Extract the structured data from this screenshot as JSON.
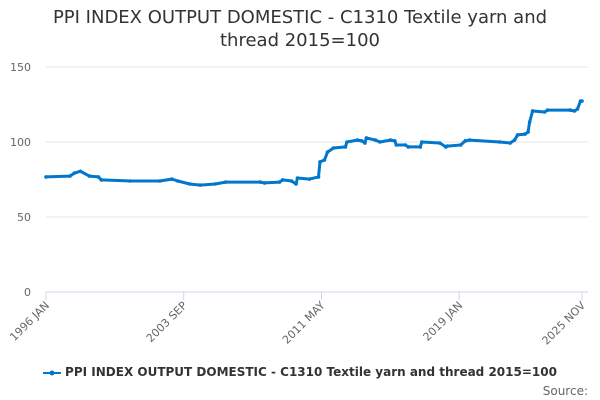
{
  "chart_data": {
    "type": "line",
    "title": "PPI INDEX OUTPUT DOMESTIC - C1310 Textile yarn and thread 2015=100",
    "title_lines": [
      "PPI INDEX OUTPUT DOMESTIC - C1310 Textile yarn and",
      "thread 2015=100"
    ],
    "xlabel": "",
    "ylabel": "",
    "ylim": [
      0,
      150
    ],
    "yticks": [
      "0",
      "50",
      "100",
      "150"
    ],
    "ytick_values": [
      0,
      50,
      100,
      150
    ],
    "xlim": [
      "1996-01",
      "2025-11"
    ],
    "xticks": [
      {
        "date": "1996-01",
        "label": "1996 JAN"
      },
      {
        "date": "2003-09",
        "label": "2003 SEP"
      },
      {
        "date": "2011-05",
        "label": "2011 MAY"
      },
      {
        "date": "2019-01",
        "label": "2019 JAN"
      },
      {
        "date": "2025-11",
        "label": "2025 NOV"
      }
    ],
    "grid": true,
    "legend_position": "bottom",
    "series": [
      {
        "name": "PPI INDEX OUTPUT DOMESTIC - C1310 Textile yarn and thread 2015=100",
        "color": "#0077cc",
        "points": [
          [
            "1996-01",
            76.7
          ],
          [
            "1997-05",
            77.3
          ],
          [
            "1997-08",
            79.3
          ],
          [
            "1997-12",
            80.5
          ],
          [
            "1998-06",
            77.3
          ],
          [
            "1998-12",
            76.7
          ],
          [
            "1999-02",
            74.7
          ],
          [
            "2000-09",
            74.0
          ],
          [
            "2002-05",
            74.0
          ],
          [
            "2003-01",
            75.3
          ],
          [
            "2003-05",
            74.0
          ],
          [
            "2004-01",
            72.0
          ],
          [
            "2004-08",
            71.3
          ],
          [
            "2005-06",
            72.0
          ],
          [
            "2006-01",
            73.3
          ],
          [
            "2007-12",
            73.3
          ],
          [
            "2008-03",
            72.7
          ],
          [
            "2009-01",
            73.3
          ],
          [
            "2009-03",
            74.7
          ],
          [
            "2009-09",
            74.0
          ],
          [
            "2009-12",
            72.0
          ],
          [
            "2010-01",
            76.0
          ],
          [
            "2010-09",
            75.3
          ],
          [
            "2011-03",
            76.7
          ],
          [
            "2011-04",
            86.7
          ],
          [
            "2011-07",
            88.0
          ],
          [
            "2011-09",
            93.3
          ],
          [
            "2012-01",
            96.0
          ],
          [
            "2012-09",
            96.7
          ],
          [
            "2012-10",
            100.0
          ],
          [
            "2013-05",
            101.3
          ],
          [
            "2013-08",
            100.7
          ],
          [
            "2013-10",
            99.3
          ],
          [
            "2013-11",
            102.7
          ],
          [
            "2014-05",
            101.3
          ],
          [
            "2014-08",
            100.0
          ],
          [
            "2015-03",
            101.3
          ],
          [
            "2015-06",
            100.7
          ],
          [
            "2015-07",
            98.0
          ],
          [
            "2016-01",
            98.0
          ],
          [
            "2016-03",
            96.7
          ],
          [
            "2016-11",
            96.7
          ],
          [
            "2016-12",
            100.0
          ],
          [
            "2017-12",
            99.3
          ],
          [
            "2018-04",
            96.7
          ],
          [
            "2018-05",
            97.3
          ],
          [
            "2019-02",
            98.0
          ],
          [
            "2019-05",
            100.7
          ],
          [
            "2019-08",
            101.3
          ],
          [
            "2021-04",
            100.0
          ],
          [
            "2021-11",
            99.3
          ],
          [
            "2022-02",
            101.3
          ],
          [
            "2022-04",
            104.7
          ],
          [
            "2022-09",
            105.3
          ],
          [
            "2022-11",
            106.7
          ],
          [
            "2022-12",
            113.3
          ],
          [
            "2023-02",
            120.7
          ],
          [
            "2023-10",
            120.0
          ],
          [
            "2023-12",
            121.3
          ],
          [
            "2025-03",
            121.3
          ],
          [
            "2025-06",
            120.7
          ],
          [
            "2025-08",
            122.0
          ],
          [
            "2025-10",
            127.3
          ],
          [
            "2025-11",
            127.3
          ]
        ]
      }
    ],
    "source_label": "Source:"
  }
}
